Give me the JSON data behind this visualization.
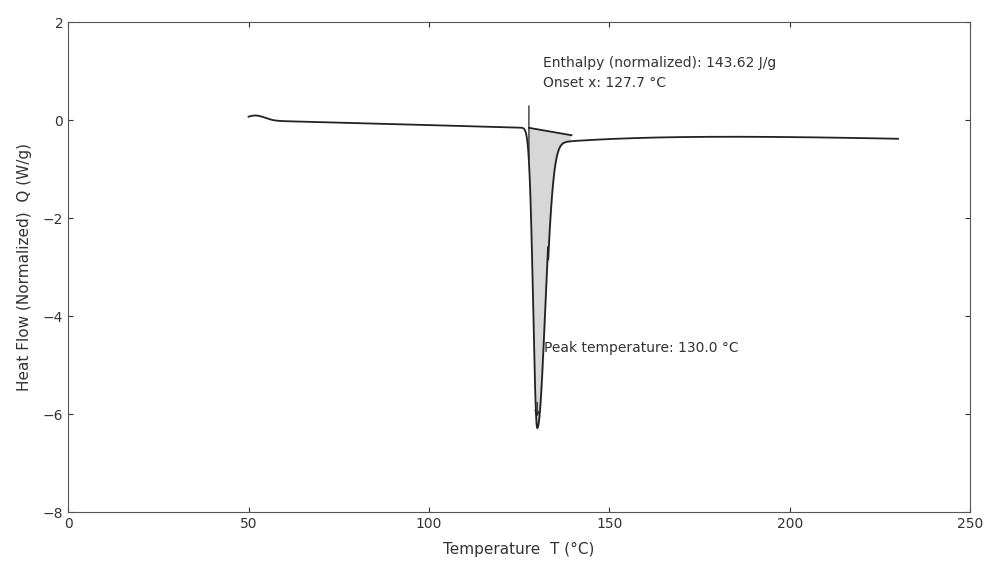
{
  "title": "",
  "xlabel": "Temperature  T (°C)",
  "ylabel": "Heat Flow (Normalized)  Q (W/g)",
  "xlim": [
    0,
    250
  ],
  "ylim": [
    -8,
    2
  ],
  "xticks": [
    0,
    50,
    100,
    150,
    200,
    250
  ],
  "yticks": [
    -8,
    -6,
    -4,
    -2,
    0,
    2
  ],
  "annotation_enthalpy": "Enthalpy (normalized): 143.62 J/g",
  "annotation_onset": "Onset x: 127.7 °C",
  "annotation_peak": "Peak temperature: 130.0 °C",
  "onset_x": 127.7,
  "peak_x": 130.0,
  "peak_y": -6.1,
  "background_color": "#ffffff",
  "line_color": "#222222",
  "fill_color": "#d0d0d0",
  "grid": false,
  "line_width": 1.3
}
